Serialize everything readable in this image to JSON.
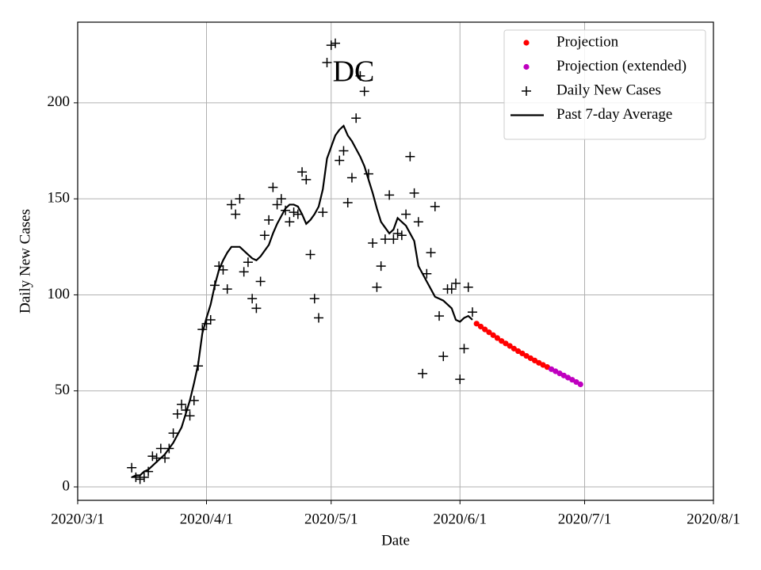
{
  "chart_data": {
    "type": "line",
    "title": "DC",
    "x_label": "Date",
    "y_label": "Daily New Cases",
    "xlim": [
      "2020/3/1",
      "2020/8/1"
    ],
    "xticks": [
      "2020/3/1",
      "2020/4/1",
      "2020/5/1",
      "2020/6/1",
      "2020/7/1",
      "2020/8/1"
    ],
    "ylim": [
      -7,
      242
    ],
    "yticks": [
      0,
      50,
      100,
      150,
      200
    ],
    "grid": true,
    "legend": "upper right",
    "series": [
      {
        "name": "Projection",
        "color": "#ff0000",
        "marker": "o",
        "x": [
          "2020/6/5",
          "2020/6/6",
          "2020/6/7",
          "2020/6/8",
          "2020/6/9",
          "2020/6/10",
          "2020/6/11",
          "2020/6/12",
          "2020/6/13",
          "2020/6/14",
          "2020/6/15",
          "2020/6/16",
          "2020/6/17",
          "2020/6/18",
          "2020/6/19",
          "2020/6/20",
          "2020/6/21",
          "2020/6/22"
        ],
        "values": [
          85,
          83.5,
          82,
          80.5,
          79,
          77.5,
          76,
          74.7,
          73.4,
          72,
          70.7,
          69.5,
          68.2,
          67,
          65.8,
          64.6,
          63.5,
          62.4
        ]
      },
      {
        "name": "Projection (extended)",
        "color": "#bf00bf",
        "marker": "o",
        "x": [
          "2020/6/23",
          "2020/6/24",
          "2020/6/25",
          "2020/6/26",
          "2020/6/27",
          "2020/6/28",
          "2020/6/29",
          "2020/6/30"
        ],
        "values": [
          61.3,
          60.2,
          59.1,
          58,
          56.9,
          55.8,
          54.6,
          53.4
        ]
      },
      {
        "name": "Daily New Cases",
        "color": "#000000",
        "marker": "+",
        "x": [
          "2020/3/14",
          "2020/3/15",
          "2020/3/16",
          "2020/3/17",
          "2020/3/18",
          "2020/3/19",
          "2020/3/20",
          "2020/3/21",
          "2020/3/22",
          "2020/3/23",
          "2020/3/24",
          "2020/3/25",
          "2020/3/26",
          "2020/3/27",
          "2020/3/28",
          "2020/3/29",
          "2020/3/30",
          "2020/3/31",
          "2020/4/1",
          "2020/4/2",
          "2020/4/3",
          "2020/4/4",
          "2020/4/5",
          "2020/4/6",
          "2020/4/7",
          "2020/4/8",
          "2020/4/9",
          "2020/4/10",
          "2020/4/11",
          "2020/4/12",
          "2020/4/13",
          "2020/4/14",
          "2020/4/15",
          "2020/4/16",
          "2020/4/17",
          "2020/4/18",
          "2020/4/19",
          "2020/4/20",
          "2020/4/21",
          "2020/4/22",
          "2020/4/23",
          "2020/4/24",
          "2020/4/25",
          "2020/4/26",
          "2020/4/27",
          "2020/4/28",
          "2020/4/29",
          "2020/4/30",
          "2020/5/1",
          "2020/5/2",
          "2020/5/3",
          "2020/5/4",
          "2020/5/5",
          "2020/5/6",
          "2020/5/7",
          "2020/5/8",
          "2020/5/9",
          "2020/5/10",
          "2020/5/11",
          "2020/5/12",
          "2020/5/13",
          "2020/5/14",
          "2020/5/15",
          "2020/5/16",
          "2020/5/17",
          "2020/5/18",
          "2020/5/19",
          "2020/5/20",
          "2020/5/21",
          "2020/5/22",
          "2020/5/23",
          "2020/5/24",
          "2020/5/25",
          "2020/5/26",
          "2020/5/27",
          "2020/5/28",
          "2020/5/29",
          "2020/5/30",
          "2020/5/31",
          "2020/6/1",
          "2020/6/2",
          "2020/6/3",
          "2020/6/4"
        ],
        "values": [
          10,
          5,
          4,
          5,
          8,
          16,
          15,
          20,
          15,
          20,
          28,
          38,
          43,
          40,
          37,
          45,
          63,
          82,
          85,
          87,
          105,
          115,
          113,
          103,
          147,
          142,
          150,
          112,
          117,
          98,
          93,
          107,
          131,
          139,
          156,
          147,
          150,
          144,
          138,
          143,
          142,
          164,
          160,
          121,
          98,
          88,
          143,
          221,
          230,
          231,
          170,
          175,
          148,
          161,
          192,
          214,
          206,
          163,
          127,
          104,
          115,
          129,
          152,
          129,
          132,
          131,
          142,
          172,
          153,
          138,
          59,
          111,
          122,
          146,
          89,
          68,
          103,
          103,
          106,
          56,
          72,
          104,
          91
        ]
      },
      {
        "name": "Past 7-day Average",
        "color": "#000000",
        "linestyle": "-",
        "x": [
          "2020/3/14",
          "2020/3/15",
          "2020/3/16",
          "2020/3/17",
          "2020/3/18",
          "2020/3/19",
          "2020/3/20",
          "2020/3/21",
          "2020/3/22",
          "2020/3/23",
          "2020/3/24",
          "2020/3/25",
          "2020/3/26",
          "2020/3/27",
          "2020/3/28",
          "2020/3/29",
          "2020/3/30",
          "2020/3/31",
          "2020/4/1",
          "2020/4/2",
          "2020/4/3",
          "2020/4/4",
          "2020/4/5",
          "2020/4/6",
          "2020/4/7",
          "2020/4/8",
          "2020/4/9",
          "2020/4/10",
          "2020/4/11",
          "2020/4/12",
          "2020/4/13",
          "2020/4/14",
          "2020/4/15",
          "2020/4/16",
          "2020/4/17",
          "2020/4/18",
          "2020/4/19",
          "2020/4/20",
          "2020/4/21",
          "2020/4/22",
          "2020/4/23",
          "2020/4/24",
          "2020/4/25",
          "2020/4/26",
          "2020/4/27",
          "2020/4/28",
          "2020/4/29",
          "2020/4/30",
          "2020/5/1",
          "2020/5/2",
          "2020/5/3",
          "2020/5/4",
          "2020/5/5",
          "2020/5/6",
          "2020/5/7",
          "2020/5/8",
          "2020/5/9",
          "2020/5/10",
          "2020/5/11",
          "2020/5/12",
          "2020/5/13",
          "2020/5/14",
          "2020/5/15",
          "2020/5/16",
          "2020/5/17",
          "2020/5/18",
          "2020/5/19",
          "2020/5/20",
          "2020/5/21",
          "2020/5/22",
          "2020/5/23",
          "2020/5/24",
          "2020/5/25",
          "2020/5/26",
          "2020/5/27",
          "2020/5/28",
          "2020/5/29",
          "2020/5/30",
          "2020/5/31",
          "2020/6/1",
          "2020/6/2",
          "2020/6/3",
          "2020/6/4"
        ],
        "values": [
          5,
          6,
          6,
          8,
          9,
          11,
          13,
          15,
          17,
          20,
          23,
          27,
          31,
          38,
          45,
          54,
          64,
          80,
          88,
          95,
          105,
          113,
          118,
          122,
          125,
          125,
          125,
          123,
          121,
          119,
          118,
          120,
          123,
          126,
          132,
          137,
          141,
          145,
          147,
          147,
          146,
          142,
          137,
          139,
          142,
          146,
          155,
          171,
          177,
          183,
          186,
          188,
          183,
          180,
          176,
          172,
          167,
          160,
          153,
          145,
          138,
          135,
          132,
          134,
          140,
          138,
          136,
          132,
          128,
          115,
          111,
          107,
          103,
          99,
          98,
          97,
          95,
          93,
          87,
          86,
          88,
          89,
          87
        ]
      }
    ]
  }
}
